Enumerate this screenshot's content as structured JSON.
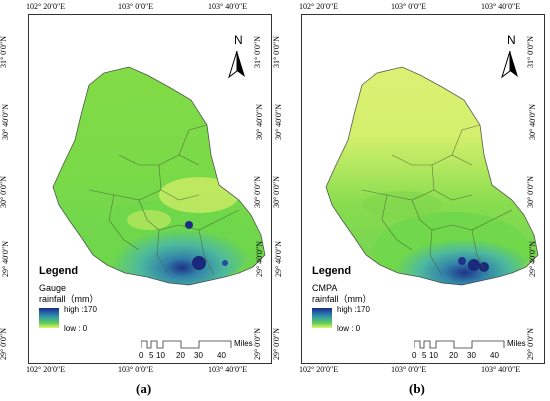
{
  "panels": [
    {
      "id": "a",
      "top_labels": [
        "102° 20′0″E",
        "103° 0′0″E",
        "103° 40′0″E"
      ],
      "bottom_labels": [
        "102° 20′0″E",
        "103° 0′0″E",
        "103° 40′0″E"
      ],
      "left_labels": [
        "31° 0′0″N",
        "30° 40′0″N",
        "30° 0′0″N",
        "29° 40′0″N",
        "29° 0′0″N"
      ],
      "right_labels": [
        "31° 0′0″N",
        "30° 40′0″N",
        "30° 0′0″N",
        "29° 40′0″N",
        "29° 0′0″N"
      ],
      "legend_title": "Legend",
      "legend_line1": "Gauge",
      "legend_line2": "rainfall（mm）",
      "high_label": "high :170",
      "low_label": "low : 0",
      "north": "N",
      "scale_numbers": [
        "0",
        "5",
        "10",
        "20",
        "30",
        "40"
      ],
      "scale_unit": "Miles",
      "panel_label": "(a)"
    },
    {
      "id": "b",
      "top_labels": [
        "102° 20′0″E",
        "103° 0′0″E",
        "103° 40′0″E"
      ],
      "bottom_labels": [
        "102° 20′0″E",
        "103° 0′0″E",
        "103° 40′0″E"
      ],
      "left_labels": [
        "31° 0′0″N",
        "30° 40′0″N",
        "30° 0′0″N",
        "29° 40′0″N",
        "29° 0′0″N"
      ],
      "right_labels": [
        "31° 0′0″N",
        "30° 40′0″N",
        "30° 0′0″N",
        "29° 40′0″N",
        "29° 0′0″N"
      ],
      "legend_title": "Legend",
      "legend_line1": "CMPA",
      "legend_line2": "rainfall（mm）",
      "high_label": "high :170",
      "low_label": "low : 0",
      "north": "N",
      "scale_numbers": [
        "0",
        "5",
        "10",
        "20",
        "30",
        "40"
      ],
      "scale_unit": "Miles",
      "panel_label": "(b)"
    }
  ],
  "colors": {
    "high": "#1a2a8a",
    "mid": "#2f8fb0",
    "green": "#5ccf5a",
    "low": "#eaf36a"
  }
}
